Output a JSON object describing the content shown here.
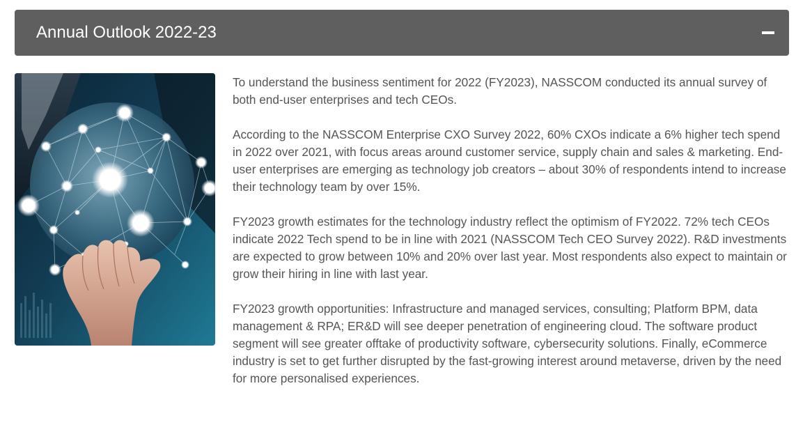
{
  "section": {
    "title": "Annual Outlook 2022-23",
    "toggle_icon": "minus-icon"
  },
  "image": {
    "icon": "hand-holding-global-network-globe",
    "colors": {
      "background_dark": "#0d2b3d",
      "background_teal": "#1f6f8c",
      "node_glow": "#ffffff"
    }
  },
  "paragraphs": [
    "To understand the business sentiment for 2022 (FY2023), NASSCOM conducted its annual survey of both end-user enterprises and tech CEOs.",
    "According to the NASSCOM Enterprise CXO Survey 2022, 60% CXOs indicate a 6% higher tech spend in 2022 over 2021, with focus areas around customer service, supply chain and sales & marketing. End-user enterprises are emerging as technology job creators – about 30% of respondents intend to increase their technology team by over 15%.",
    "FY2023 growth estimates for the technology industry reflect the optimism of FY2022. 72% tech CEOs indicate 2022 Tech spend to be in line with 2021 (NASSCOM Tech CEO Survey 2022). R&D investments are expected to grow between 10% and 20% over last year. Most respondents also expect to maintain or grow their hiring in line with last year.",
    "FY2023 growth opportunities: Infrastructure and managed services, consulting; Platform BPM, data management & RPA; ER&D will see deeper penetration of engineering cloud. The software product segment will see greater offtake of productivity software, cybersecurity solutions. Finally, eCommerce industry is set to get further disrupted by the fast-growing interest around metaverse, driven by the need for more personalised experiences."
  ],
  "colors": {
    "header_background": "#5f5f5f",
    "header_text": "#ffffff",
    "body_text": "#555555"
  }
}
